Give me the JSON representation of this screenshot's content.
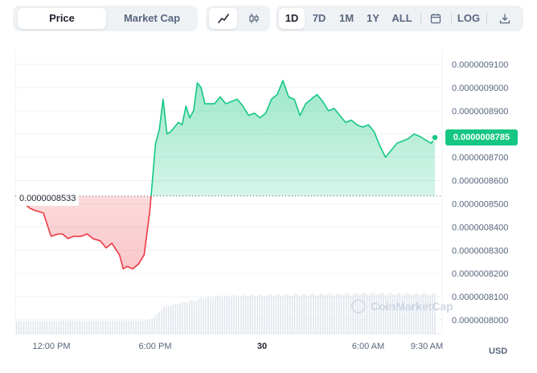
{
  "toolbar": {
    "tabs": [
      {
        "label": "Price",
        "active": true
      },
      {
        "label": "Market Cap",
        "active": false
      }
    ],
    "chart_modes": [
      {
        "icon": "line-chart-icon",
        "active": true
      },
      {
        "icon": "candlestick-icon",
        "active": false
      }
    ],
    "ranges": [
      {
        "label": "1D",
        "active": true
      },
      {
        "label": "7D",
        "active": false
      },
      {
        "label": "1M",
        "active": false
      },
      {
        "label": "1Y",
        "active": false
      },
      {
        "label": "ALL",
        "active": false
      }
    ],
    "calendar_icon": "calendar-icon",
    "log_label": "LOG",
    "download_icon": "download-icon"
  },
  "chart_data": {
    "type": "area",
    "x_ticks": [
      "12:00 PM",
      "6:00 PM",
      "30",
      "6:00 AM",
      "9:30 AM"
    ],
    "y_ticks": [
      "0.0000008000",
      "0.0000008100",
      "0.0000008200",
      "0.0000008300",
      "0.0000008400",
      "0.0000008500",
      "0.0000008600",
      "0.0000008700",
      "0.0000008800",
      "0.0000008900",
      "0.0000009000",
      "0.0000009100"
    ],
    "ylim": [
      7.96e-07,
      9.13e-07
    ],
    "reference_price": 8.533e-07,
    "reference_label": "0.0000008533",
    "current_price": 8.785e-07,
    "current_label": "0.0000008785",
    "currency": "USD",
    "watermark": "CoinMarketCap",
    "colors": {
      "up": "#16c784",
      "down": "#ea3943"
    },
    "time_hours": [
      0,
      0.3,
      0.6,
      1.0,
      1.4,
      1.8,
      2.0,
      2.3,
      2.6,
      3.0,
      3.3,
      3.6,
      4.0,
      4.3,
      4.6,
      5.0,
      5.2,
      5.4,
      5.7,
      6.0,
      6.3,
      6.6,
      6.9,
      7.1,
      7.3,
      7.5,
      7.7,
      7.9,
      8.1,
      8.3,
      8.5,
      8.7,
      8.9,
      9.1,
      9.3,
      9.5,
      9.8,
      10.0,
      10.3,
      10.6,
      10.9,
      11.2,
      11.5,
      11.8,
      12.1,
      12.4,
      12.7,
      13.0,
      13.3,
      13.6,
      13.9,
      14.2,
      14.5,
      14.8,
      15.1,
      15.4,
      15.7,
      16.0,
      16.3,
      16.6,
      16.9,
      17.2,
      17.5,
      17.8,
      18.1,
      18.4,
      18.7,
      19.0,
      19.3,
      19.6,
      19.9,
      20.2,
      20.5,
      20.8,
      21.0,
      21.2,
      21.4,
      21.6
    ],
    "price": [
      8.5e-07,
      8.48e-07,
      8.47e-07,
      8.46e-07,
      8.36e-07,
      8.37e-07,
      8.37e-07,
      8.35e-07,
      8.36e-07,
      8.36e-07,
      8.37e-07,
      8.35e-07,
      8.34e-07,
      8.31e-07,
      8.33e-07,
      8.28e-07,
      8.22e-07,
      8.23e-07,
      8.22e-07,
      8.24e-07,
      8.28e-07,
      8.47e-07,
      8.76e-07,
      8.82e-07,
      8.95e-07,
      8.8e-07,
      8.81e-07,
      8.83e-07,
      8.85e-07,
      8.84e-07,
      8.92e-07,
      8.87e-07,
      8.9e-07,
      9.02e-07,
      9e-07,
      8.93e-07,
      8.93e-07,
      8.93e-07,
      8.96e-07,
      8.93e-07,
      8.94e-07,
      8.95e-07,
      8.92e-07,
      8.88e-07,
      8.89e-07,
      8.87e-07,
      8.89e-07,
      8.95e-07,
      8.97e-07,
      9.03e-07,
      8.96e-07,
      8.95e-07,
      8.88e-07,
      8.93e-07,
      8.95e-07,
      8.97e-07,
      8.94e-07,
      8.9e-07,
      8.91e-07,
      8.88e-07,
      8.85e-07,
      8.86e-07,
      8.84e-07,
      8.83e-07,
      8.84e-07,
      8.81e-07,
      8.75e-07,
      8.7e-07,
      8.73e-07,
      8.76e-07,
      8.77e-07,
      8.78e-07,
      8.8e-07,
      8.79e-07,
      8.78e-07,
      8.77e-07,
      8.76e-07,
      8.785e-07
    ],
    "volume_relative": [
      0.31,
      0.31,
      0.31,
      0.31,
      0.31,
      0.31,
      0.32,
      0.32,
      0.32,
      0.31,
      0.31,
      0.32,
      0.32,
      0.31,
      0.31,
      0.32,
      0.32,
      0.32,
      0.32,
      0.31,
      0.32,
      0.36,
      0.46,
      0.58,
      0.66,
      0.7,
      0.72,
      0.74,
      0.76,
      0.78,
      0.8,
      0.82,
      0.84,
      0.86,
      0.88,
      0.9,
      0.92,
      0.94,
      0.94,
      0.94,
      0.95,
      0.95,
      0.95,
      0.96,
      0.96,
      0.96,
      0.96,
      0.97,
      0.97,
      0.97,
      0.97,
      0.98,
      0.98,
      0.98,
      0.98,
      0.98,
      0.99,
      0.99,
      0.99,
      0.99,
      0.99,
      0.99,
      1.0,
      1.0,
      1.0,
      1.0,
      1.0,
      1.0,
      1.0,
      1.0,
      1.0,
      1.0,
      1.0,
      1.0,
      1.0,
      1.0,
      1.0,
      1.0
    ]
  }
}
